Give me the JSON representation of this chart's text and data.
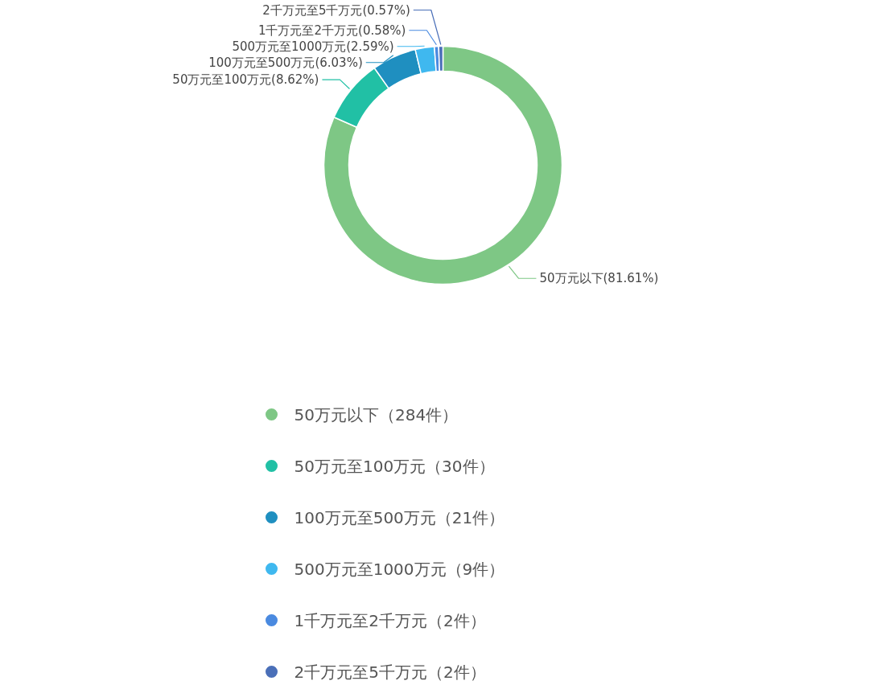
{
  "chart_data": {
    "type": "donut",
    "categories": [
      "50万元以下",
      "50万元至100万元",
      "100万元至500万元",
      "500万元至1000万元",
      "1千万元至2千万元",
      "2千万元至5千万元"
    ],
    "values": [
      284,
      30,
      21,
      9,
      2,
      2
    ],
    "colors": [
      "#7ec785",
      "#21c0a5",
      "#1f8fc0",
      "#3fb8ef",
      "#4a8ae0",
      "#4a6fb8"
    ],
    "value_labels": [
      "（284件）",
      "（30件）",
      "（21件）",
      "（9件）",
      "（2件）",
      "（2件）"
    ],
    "annotations": [
      "50万元以下(81.61%)",
      "50万元至100万元(8.62%)",
      "100万元至500万元(6.03%)",
      "500万元至1000万元(2.59%)",
      "1千万元至2千万元(0.58%)",
      "2千万元至5千万元(0.57%)"
    ],
    "legend": "bottom"
  }
}
